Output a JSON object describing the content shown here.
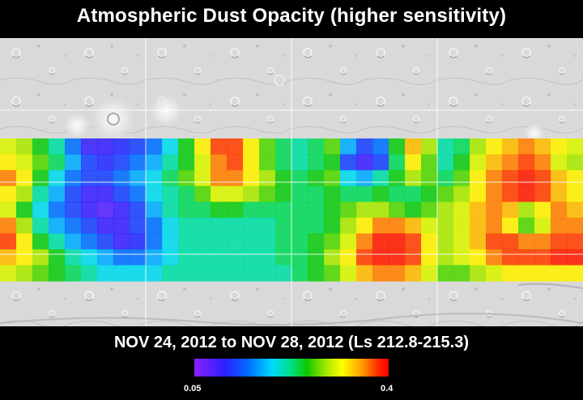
{
  "title": "Atmospheric Dust Opacity (higher sensitivity)",
  "subtitle": "NOV 24, 2012 to NOV 28, 2012 (Ls 212.8-215.3)",
  "colorbar": {
    "min_label": "0.05",
    "max_label": "0.4",
    "min_value": 0.05,
    "max_value": 0.4,
    "colors": [
      "#8a20ff",
      "#2a20ff",
      "#0070ff",
      "#00d8ff",
      "#00e080",
      "#10c800",
      "#a8e800",
      "#ffff00",
      "#ffa000",
      "#ff3000",
      "#ff0000"
    ]
  },
  "map": {
    "base": "shaded-relief-mars",
    "gridlines": true,
    "data_band_latitude_range_deg": [
      -45,
      45
    ],
    "opacity_field": [
      [
        0.28,
        0.26,
        0.22,
        0.18,
        0.12,
        0.08,
        0.08,
        0.09,
        0.1,
        0.12,
        0.16,
        0.22,
        0.3,
        0.36,
        0.36,
        0.3,
        0.24,
        0.2,
        0.18,
        0.2,
        0.24,
        0.14,
        0.1,
        0.12,
        0.22,
        0.32,
        0.26,
        0.18,
        0.2,
        0.26,
        0.3,
        0.32,
        0.34,
        0.32,
        0.3,
        0.28
      ],
      [
        0.3,
        0.28,
        0.24,
        0.2,
        0.14,
        0.1,
        0.09,
        0.1,
        0.12,
        0.14,
        0.18,
        0.22,
        0.28,
        0.34,
        0.36,
        0.3,
        0.24,
        0.2,
        0.18,
        0.2,
        0.22,
        0.1,
        0.08,
        0.1,
        0.2,
        0.3,
        0.24,
        0.18,
        0.22,
        0.28,
        0.32,
        0.34,
        0.36,
        0.34,
        0.28,
        0.26
      ],
      [
        0.34,
        0.3,
        0.22,
        0.16,
        0.12,
        0.1,
        0.1,
        0.12,
        0.14,
        0.16,
        0.2,
        0.24,
        0.28,
        0.34,
        0.34,
        0.3,
        0.26,
        0.22,
        0.2,
        0.22,
        0.24,
        0.16,
        0.14,
        0.18,
        0.22,
        0.26,
        0.24,
        0.2,
        0.24,
        0.3,
        0.34,
        0.36,
        0.38,
        0.36,
        0.32,
        0.3
      ],
      [
        0.3,
        0.26,
        0.18,
        0.14,
        0.1,
        0.08,
        0.08,
        0.1,
        0.12,
        0.16,
        0.18,
        0.2,
        0.24,
        0.28,
        0.28,
        0.26,
        0.24,
        0.22,
        0.2,
        0.2,
        0.22,
        0.2,
        0.2,
        0.22,
        0.2,
        0.2,
        0.22,
        0.24,
        0.26,
        0.3,
        0.34,
        0.36,
        0.38,
        0.36,
        0.32,
        0.3
      ],
      [
        0.28,
        0.22,
        0.16,
        0.12,
        0.1,
        0.08,
        0.07,
        0.08,
        0.1,
        0.14,
        0.18,
        0.2,
        0.2,
        0.22,
        0.22,
        0.2,
        0.2,
        0.2,
        0.2,
        0.2,
        0.22,
        0.24,
        0.26,
        0.26,
        0.24,
        0.22,
        0.24,
        0.26,
        0.28,
        0.32,
        0.34,
        0.32,
        0.26,
        0.3,
        0.34,
        0.32
      ],
      [
        0.34,
        0.26,
        0.18,
        0.14,
        0.12,
        0.1,
        0.08,
        0.08,
        0.1,
        0.12,
        0.16,
        0.18,
        0.18,
        0.18,
        0.18,
        0.18,
        0.18,
        0.2,
        0.2,
        0.2,
        0.22,
        0.26,
        0.3,
        0.34,
        0.34,
        0.32,
        0.28,
        0.26,
        0.28,
        0.32,
        0.34,
        0.3,
        0.24,
        0.28,
        0.34,
        0.34
      ],
      [
        0.36,
        0.3,
        0.22,
        0.18,
        0.14,
        0.12,
        0.1,
        0.08,
        0.09,
        0.12,
        0.16,
        0.18,
        0.18,
        0.18,
        0.18,
        0.18,
        0.18,
        0.2,
        0.2,
        0.22,
        0.24,
        0.28,
        0.34,
        0.38,
        0.38,
        0.36,
        0.3,
        0.26,
        0.28,
        0.32,
        0.36,
        0.36,
        0.34,
        0.34,
        0.36,
        0.36
      ],
      [
        0.32,
        0.3,
        0.26,
        0.22,
        0.18,
        0.16,
        0.14,
        0.12,
        0.12,
        0.14,
        0.16,
        0.18,
        0.18,
        0.18,
        0.18,
        0.18,
        0.18,
        0.2,
        0.2,
        0.22,
        0.26,
        0.3,
        0.36,
        0.38,
        0.38,
        0.36,
        0.3,
        0.26,
        0.28,
        0.3,
        0.34,
        0.36,
        0.36,
        0.36,
        0.38,
        0.38
      ],
      [
        0.28,
        0.26,
        0.24,
        0.22,
        0.2,
        0.18,
        0.16,
        0.16,
        0.16,
        0.16,
        0.18,
        0.18,
        0.18,
        0.18,
        0.18,
        0.18,
        0.18,
        0.18,
        0.2,
        0.22,
        0.24,
        0.28,
        0.32,
        0.34,
        0.34,
        0.32,
        0.28,
        0.24,
        0.24,
        0.26,
        0.28,
        0.3,
        0.3,
        0.3,
        0.3,
        0.3
      ]
    ]
  }
}
